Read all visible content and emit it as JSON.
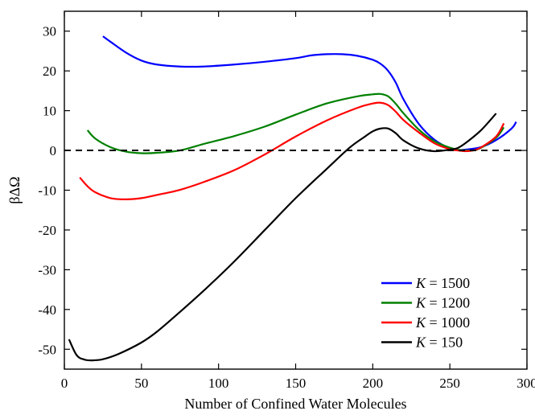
{
  "chart_data": {
    "type": "line",
    "title": "",
    "xlabel": "Number of Confined Water Molecules",
    "ylabel": "βΔΩ",
    "xlim": [
      0,
      300
    ],
    "ylim": [
      -55,
      35
    ],
    "xticks": [
      0,
      50,
      100,
      150,
      200,
      250,
      300
    ],
    "yticks": [
      -50,
      -40,
      -30,
      -20,
      -10,
      0,
      10,
      20,
      30
    ],
    "grid": false,
    "legend_position": "bottom-right",
    "reference_line": {
      "y": 0,
      "style": "dashed",
      "color": "#000000"
    },
    "series": [
      {
        "name_prefix": "K",
        "name_suffix": " = 1500",
        "color": "#0000ff",
        "x": [
          25,
          30,
          40,
          50,
          60,
          75,
          90,
          110,
          130,
          150,
          160,
          170,
          180,
          190,
          200,
          205,
          210,
          215,
          220,
          230,
          240,
          250,
          255,
          260,
          270,
          280,
          290,
          293
        ],
        "y": [
          28.7,
          27.3,
          24.6,
          22.6,
          21.6,
          21.1,
          21.1,
          21.6,
          22.3,
          23.2,
          23.9,
          24.2,
          24.2,
          23.8,
          22.8,
          21.8,
          20.0,
          17.0,
          12.8,
          6.6,
          2.7,
          0.5,
          0.1,
          0.2,
          0.8,
          2.6,
          5.5,
          7.2
        ]
      },
      {
        "name_prefix": "K",
        "name_suffix": " = 1200",
        "color": "#008000",
        "x": [
          15,
          20,
          30,
          40,
          50,
          60,
          75,
          90,
          110,
          130,
          150,
          170,
          190,
          200,
          205,
          210,
          215,
          220,
          230,
          240,
          250,
          255,
          260,
          265,
          270,
          280,
          285
        ],
        "y": [
          5.1,
          3.0,
          0.8,
          -0.3,
          -0.7,
          -0.6,
          0.0,
          1.6,
          3.6,
          6.0,
          9.0,
          11.8,
          13.6,
          14.1,
          14.2,
          13.6,
          11.7,
          9.3,
          5.2,
          2.3,
          0.7,
          0.2,
          0.0,
          0.0,
          0.6,
          3.2,
          5.8
        ]
      },
      {
        "name_prefix": "K",
        "name_suffix": " = 1000",
        "color": "#ff0000",
        "x": [
          10,
          15,
          20,
          30,
          40,
          50,
          60,
          75,
          90,
          110,
          130,
          150,
          170,
          190,
          200,
          205,
          210,
          215,
          220,
          230,
          240,
          250,
          255,
          260,
          265,
          270,
          280,
          285
        ],
        "y": [
          -6.8,
          -9.0,
          -10.5,
          -12.0,
          -12.3,
          -12.0,
          -11.2,
          -9.9,
          -8.0,
          -5.0,
          -1.0,
          3.5,
          7.5,
          10.7,
          11.8,
          12.0,
          11.4,
          9.7,
          7.6,
          4.5,
          1.8,
          0.3,
          0.0,
          -0.2,
          0.0,
          0.7,
          3.5,
          6.8
        ]
      },
      {
        "name_prefix": "K",
        "name_suffix": " = 150",
        "color": "#000000",
        "x": [
          3,
          8,
          13,
          18,
          25,
          35,
          50,
          60,
          75,
          90,
          110,
          130,
          150,
          170,
          185,
          195,
          200,
          205,
          210,
          215,
          220,
          230,
          240,
          250,
          255,
          260,
          270,
          280
        ],
        "y": [
          -47.5,
          -51.5,
          -52.6,
          -52.8,
          -52.5,
          -51.2,
          -48.3,
          -45.6,
          -40.6,
          -35.4,
          -28.0,
          -20.0,
          -12.0,
          -4.7,
          0.7,
          3.5,
          4.8,
          5.5,
          5.5,
          4.3,
          2.5,
          0.5,
          -0.2,
          0.2,
          0.6,
          1.8,
          5.0,
          9.3
        ]
      }
    ]
  }
}
